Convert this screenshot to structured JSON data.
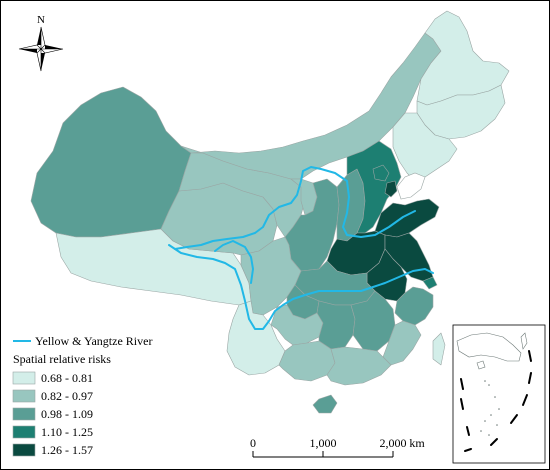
{
  "compass": {
    "label": "N"
  },
  "legend": {
    "river_label": "Yellow & Yangtze River",
    "river_color": "#22b8e6",
    "title": "Spatial relative risks",
    "classes": [
      {
        "range": "0.68 - 0.81",
        "color": "#d3eee9"
      },
      {
        "range": "0.82 - 0.97",
        "color": "#98c6bf"
      },
      {
        "range": "0.98 - 1.09",
        "color": "#5a9e95"
      },
      {
        "range": "1.10 - 1.25",
        "color": "#1d7f72"
      },
      {
        "range": "1.26 - 1.57",
        "color": "#0a4a40"
      }
    ]
  },
  "scale_bar": {
    "ticks": [
      "0",
      "1,000",
      "2,000"
    ],
    "unit": "km"
  },
  "regions": [
    {
      "name": "Xinjiang",
      "class": 2
    },
    {
      "name": "Tibet",
      "class": 0
    },
    {
      "name": "Qinghai",
      "class": 1
    },
    {
      "name": "Gansu",
      "class": 1
    },
    {
      "name": "Inner Mongolia",
      "class": 1
    },
    {
      "name": "Heilongjiang",
      "class": 0
    },
    {
      "name": "Jilin",
      "class": 0
    },
    {
      "name": "Liaoning",
      "class": 0
    },
    {
      "name": "Ningxia",
      "class": 1
    },
    {
      "name": "Shaanxi",
      "class": 2
    },
    {
      "name": "Shanxi",
      "class": 2
    },
    {
      "name": "Hebei",
      "class": 3
    },
    {
      "name": "Beijing",
      "class": 3
    },
    {
      "name": "Tianjin",
      "class": 4
    },
    {
      "name": "Shandong",
      "class": 4
    },
    {
      "name": "Henan",
      "class": 4
    },
    {
      "name": "Jiangsu",
      "class": 4
    },
    {
      "name": "Anhui",
      "class": 4
    },
    {
      "name": "Shanghai",
      "class": 3
    },
    {
      "name": "Hubei",
      "class": 2
    },
    {
      "name": "Sichuan",
      "class": 1
    },
    {
      "name": "Chongqing",
      "class": 2
    },
    {
      "name": "Yunnan",
      "class": 0
    },
    {
      "name": "Guizhou",
      "class": 1
    },
    {
      "name": "Hunan",
      "class": 2
    },
    {
      "name": "Jiangxi",
      "class": 2
    },
    {
      "name": "Zhejiang",
      "class": 2
    },
    {
      "name": "Fujian",
      "class": 1
    },
    {
      "name": "Guangxi",
      "class": 1
    },
    {
      "name": "Guangdong",
      "class": 1
    },
    {
      "name": "Hainan",
      "class": 2
    },
    {
      "name": "Taiwan",
      "class": 0
    }
  ]
}
